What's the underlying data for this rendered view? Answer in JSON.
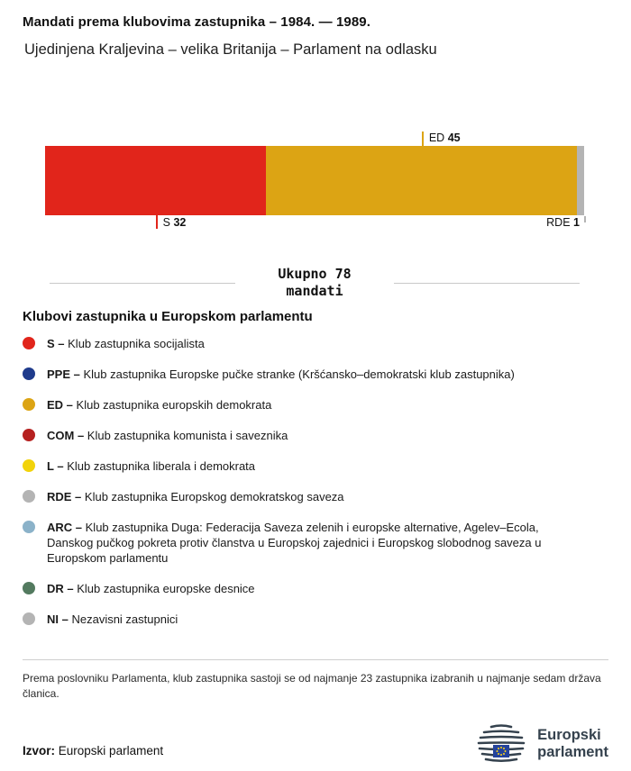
{
  "header": {
    "title": "Mandati prema klubovima zastupnika – 1984. — 1989.",
    "subtitle": "Ujedinjena Kraljevina – velika Britanija – Parlament na odlasku"
  },
  "chart_data": {
    "type": "bar",
    "title": "Mandati prema klubovima zastupnika – 1984. — 1989.",
    "total": 78,
    "total_line1": "Ukupno 78",
    "total_line2": "mandati",
    "segments": [
      {
        "code": "S",
        "value": 32,
        "color": "#e1251b"
      },
      {
        "code": "ED",
        "value": 45,
        "color": "#dca414"
      },
      {
        "code": "RDE",
        "value": 1,
        "color": "#b4b4b4"
      }
    ]
  },
  "legend": {
    "heading": "Klubovi zastupnika u Europskom parlamentu",
    "items": [
      {
        "code": "S –",
        "label": "Klub zastupnika socijalista",
        "color": "#e1251b"
      },
      {
        "code": "PPE –",
        "label": "Klub zastupnika Europske pučke stranke (Kršćansko–demokratski klub zastupnika)",
        "color": "#1f3b8c"
      },
      {
        "code": "ED –",
        "label": "Klub zastupnika europskih demokrata",
        "color": "#dca414"
      },
      {
        "code": "COM –",
        "label": "Klub zastupnika komunista i saveznika",
        "color": "#b62120"
      },
      {
        "code": "L –",
        "label": "Klub zastupnika liberala i demokrata",
        "color": "#f2d30a"
      },
      {
        "code": "RDE –",
        "label": "Klub zastupnika Europskog demokratskog saveza",
        "color": "#b4b4b4"
      },
      {
        "code": "ARC –",
        "label": "Klub zastupnika Duga: Federacija Saveza zelenih i europske alternative, Agelev–Ecola, Danskog pučkog pokreta protiv članstva u Europskoj zajednici i Europskog slobodnog saveza u Europskom parlamentu",
        "color": "#8bb2c9"
      },
      {
        "code": "DR –",
        "label": "Klub zastupnika europske desnice",
        "color": "#537a5f"
      },
      {
        "code": "NI –",
        "label": "Nezavisni zastupnici",
        "color": "#b4b4b4"
      }
    ]
  },
  "footer": {
    "note": "Prema poslovniku Parlamenta, klub zastupnika sastoji se od najmanje 23 zastupnika izabranih u najmanje sedam država članica.",
    "source_label": "Izvor:",
    "source_text": "Europski parlament",
    "logo_line1": "Europski",
    "logo_line2": "parlament"
  }
}
